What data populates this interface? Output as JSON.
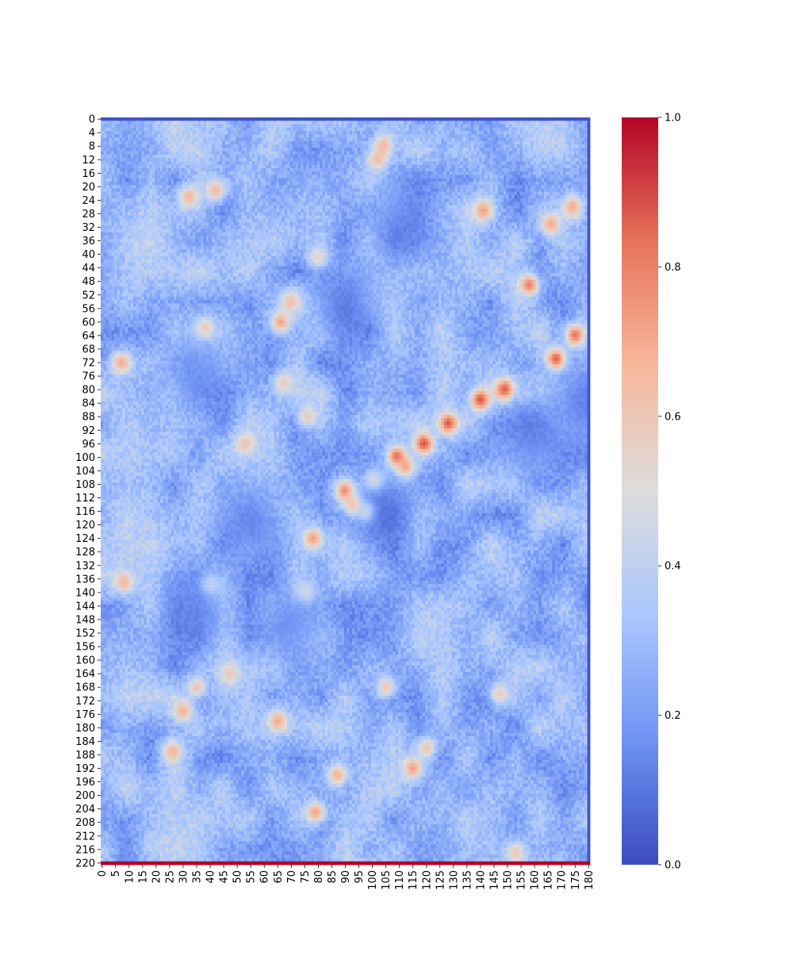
{
  "chart_data": {
    "type": "heatmap",
    "title": "",
    "xlabel": "",
    "ylabel": "",
    "colormap": "coolwarm",
    "colormap_stops": [
      "#3b4cc0",
      "#6f92f3",
      "#aac7fd",
      "#dddcdc",
      "#f7b89c",
      "#e7745b",
      "#b40426"
    ],
    "n_rows": 221,
    "n_cols": 181,
    "x_tick_step": 5,
    "y_tick_step": 4,
    "value_range": [
      0.0,
      1.0
    ],
    "colorbar": {
      "ticks": [
        0.0,
        0.2,
        0.4,
        0.6,
        0.8,
        1.0
      ],
      "tick_labels": [
        "0.0",
        "0.2",
        "0.4",
        "0.6",
        "0.8",
        "1.0"
      ]
    },
    "background_level": 0.28,
    "edge_features": {
      "top_row_value": 0.02,
      "bottom_row_value": 1.0,
      "last_col_value": 0.02
    },
    "hotspots": [
      {
        "row": 71,
        "col": 168,
        "value": 0.95
      },
      {
        "row": 64,
        "col": 175,
        "value": 0.85
      },
      {
        "row": 80,
        "col": 149,
        "value": 0.92
      },
      {
        "row": 83,
        "col": 140,
        "value": 0.9
      },
      {
        "row": 90,
        "col": 128,
        "value": 0.88
      },
      {
        "row": 96,
        "col": 119,
        "value": 0.9
      },
      {
        "row": 100,
        "col": 109,
        "value": 0.97
      },
      {
        "row": 103,
        "col": 112,
        "value": 0.85
      },
      {
        "row": 110,
        "col": 90,
        "value": 0.88
      },
      {
        "row": 114,
        "col": 93,
        "value": 0.8
      },
      {
        "row": 116,
        "col": 98,
        "value": 0.75
      },
      {
        "row": 107,
        "col": 101,
        "value": 0.72
      },
      {
        "row": 49,
        "col": 158,
        "value": 0.8
      },
      {
        "row": 31,
        "col": 166,
        "value": 0.7
      },
      {
        "row": 26,
        "col": 174,
        "value": 0.7
      },
      {
        "row": 27,
        "col": 141,
        "value": 0.72
      },
      {
        "row": 12,
        "col": 102,
        "value": 0.66
      },
      {
        "row": 8,
        "col": 104,
        "value": 0.68
      },
      {
        "row": 60,
        "col": 66,
        "value": 0.72
      },
      {
        "row": 54,
        "col": 70,
        "value": 0.66
      },
      {
        "row": 62,
        "col": 38,
        "value": 0.7
      },
      {
        "row": 21,
        "col": 42,
        "value": 0.66
      },
      {
        "row": 23,
        "col": 32,
        "value": 0.66
      },
      {
        "row": 41,
        "col": 80,
        "value": 0.6
      },
      {
        "row": 72,
        "col": 7,
        "value": 0.7
      },
      {
        "row": 96,
        "col": 53,
        "value": 0.62
      },
      {
        "row": 124,
        "col": 78,
        "value": 0.74
      },
      {
        "row": 137,
        "col": 8,
        "value": 0.66
      },
      {
        "row": 138,
        "col": 40,
        "value": 0.62
      },
      {
        "row": 140,
        "col": 75,
        "value": 0.6
      },
      {
        "row": 175,
        "col": 30,
        "value": 0.68
      },
      {
        "row": 178,
        "col": 65,
        "value": 0.7
      },
      {
        "row": 187,
        "col": 26,
        "value": 0.66
      },
      {
        "row": 192,
        "col": 115,
        "value": 0.72
      },
      {
        "row": 186,
        "col": 120,
        "value": 0.6
      },
      {
        "row": 194,
        "col": 87,
        "value": 0.68
      },
      {
        "row": 205,
        "col": 79,
        "value": 0.72
      },
      {
        "row": 217,
        "col": 153,
        "value": 0.6
      },
      {
        "row": 170,
        "col": 147,
        "value": 0.58
      },
      {
        "row": 78,
        "col": 67,
        "value": 0.58
      },
      {
        "row": 88,
        "col": 76,
        "value": 0.58
      },
      {
        "row": 164,
        "col": 47,
        "value": 0.6
      },
      {
        "row": 168,
        "col": 35,
        "value": 0.62
      },
      {
        "row": 168,
        "col": 105,
        "value": 0.6
      }
    ],
    "cool_zones": [
      {
        "row": 55,
        "col": 90,
        "value": 0.05
      },
      {
        "row": 30,
        "col": 110,
        "value": 0.08
      },
      {
        "row": 95,
        "col": 160,
        "value": 0.08
      },
      {
        "row": 85,
        "col": 178,
        "value": 0.06
      },
      {
        "row": 115,
        "col": 105,
        "value": 0.05
      },
      {
        "row": 120,
        "col": 55,
        "value": 0.08
      },
      {
        "row": 150,
        "col": 70,
        "value": 0.1
      },
      {
        "row": 145,
        "col": 35,
        "value": 0.1
      },
      {
        "row": 75,
        "col": 35,
        "value": 0.12
      }
    ]
  }
}
